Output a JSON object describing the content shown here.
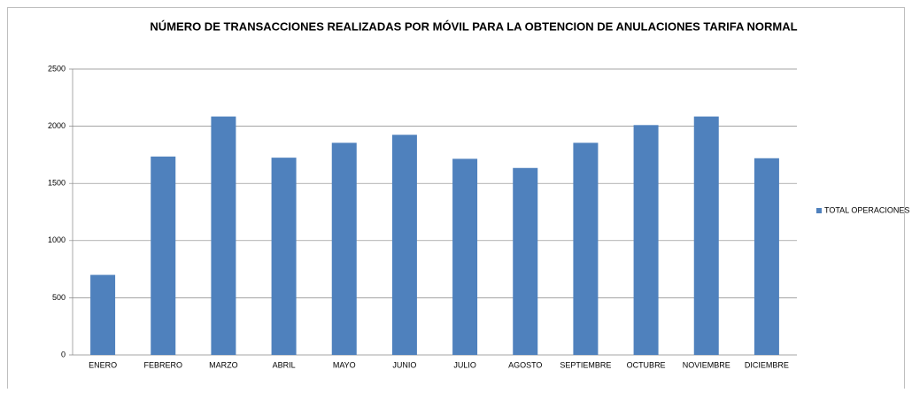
{
  "chart_data": {
    "type": "bar",
    "title": "NÚMERO DE TRANSACCIONES REALIZADAS POR MÓVIL PARA LA OBTENCION DE ANULACIONES TARIFA NORMAL",
    "categories": [
      "ENERO",
      "FEBRERO",
      "MARZO",
      "ABRIL",
      "MAYO",
      "JUNIO",
      "JULIO",
      "AGOSTO",
      "SEPTIEMBRE",
      "OCTUBRE",
      "NOVIEMBRE",
      "DICIEMBRE"
    ],
    "series": [
      {
        "name": "TOTAL OPERACIONES",
        "color": "#4f81bd",
        "values": [
          700,
          1735,
          2085,
          1725,
          1855,
          1925,
          1715,
          1635,
          1855,
          2010,
          2085,
          1720
        ]
      }
    ],
    "ylim": [
      0,
      2500
    ],
    "yticks": [
      0,
      500,
      1000,
      1500,
      2000,
      2500
    ],
    "grid": true,
    "legend": "right"
  }
}
